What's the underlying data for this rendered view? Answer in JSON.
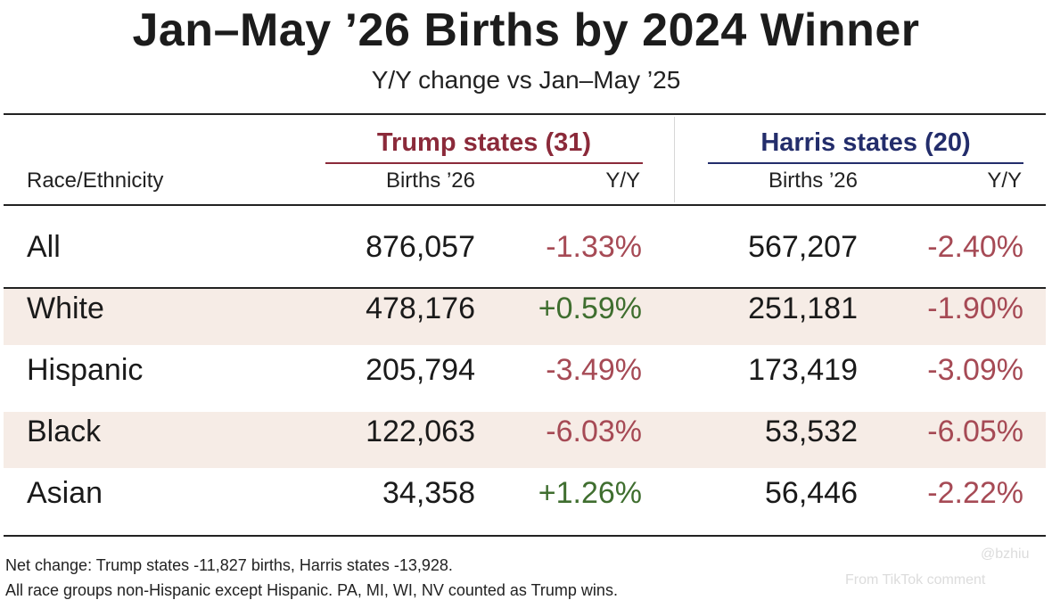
{
  "chart_data": {
    "type": "table",
    "title": "Jan–May ’26 Births by 2024 Winner",
    "subtitle": "Y/Y change vs Jan–May ’25",
    "row_header": "Race/Ethnicity",
    "groups": [
      {
        "name": "Trump states (31)",
        "color": "#8b2a3a",
        "columns": [
          "Births ’26",
          "Y/Y"
        ]
      },
      {
        "name": "Harris states (20)",
        "color": "#232d6b",
        "columns": [
          "Births ’26",
          "Y/Y"
        ]
      }
    ],
    "rows": [
      {
        "label": "All",
        "trump_births": "876,057",
        "trump_yy": "-1.33%",
        "harris_births": "567,207",
        "harris_yy": "-2.40%"
      },
      {
        "label": "White",
        "trump_births": "478,176",
        "trump_yy": "+0.59%",
        "harris_births": "251,181",
        "harris_yy": "-1.90%"
      },
      {
        "label": "Hispanic",
        "trump_births": "205,794",
        "trump_yy": "-3.49%",
        "harris_births": "173,419",
        "harris_yy": "-3.09%"
      },
      {
        "label": "Black",
        "trump_births": "122,063",
        "trump_yy": "-6.03%",
        "harris_births": "53,532",
        "harris_yy": "-6.05%"
      },
      {
        "label": "Asian",
        "trump_births": "34,358",
        "trump_yy": "+1.26%",
        "harris_births": "56,446",
        "harris_yy": "-2.22%"
      }
    ],
    "notes": [
      "Net change: Trump states -11,827 births, Harris states -13,928.",
      "All race groups non-Hispanic except Hispanic. PA, MI, WI, NV counted as Trump wins."
    ],
    "colors": {
      "negative": "#a64a55",
      "positive": "#3f6e2f",
      "band": "#f6ece6"
    }
  },
  "watermark": {
    "handle": "@bzhiu",
    "brand": "From TikTok comment"
  }
}
